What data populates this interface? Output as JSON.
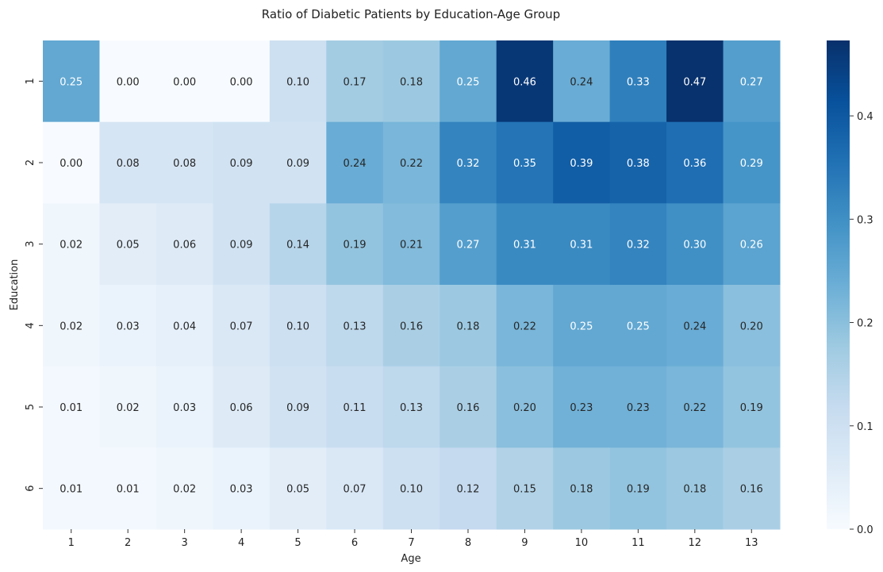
{
  "chart_data": {
    "type": "heatmap",
    "title": "Ratio of Diabetic Patients by Education-Age Group",
    "xlabel": "Age",
    "ylabel": "Education",
    "x_categories": [
      "1",
      "2",
      "3",
      "4",
      "5",
      "6",
      "7",
      "8",
      "9",
      "10",
      "11",
      "12",
      "13"
    ],
    "y_categories": [
      "1",
      "2",
      "3",
      "4",
      "5",
      "6"
    ],
    "values": [
      [
        0.25,
        0.0,
        0.0,
        0.0,
        0.1,
        0.17,
        0.18,
        0.25,
        0.46,
        0.24,
        0.33,
        0.47,
        0.27
      ],
      [
        0.0,
        0.08,
        0.08,
        0.09,
        0.09,
        0.24,
        0.22,
        0.32,
        0.35,
        0.39,
        0.38,
        0.36,
        0.29
      ],
      [
        0.02,
        0.05,
        0.06,
        0.09,
        0.14,
        0.19,
        0.21,
        0.27,
        0.31,
        0.31,
        0.32,
        0.3,
        0.26
      ],
      [
        0.02,
        0.03,
        0.04,
        0.07,
        0.1,
        0.13,
        0.16,
        0.18,
        0.22,
        0.25,
        0.25,
        0.24,
        0.2
      ],
      [
        0.01,
        0.02,
        0.03,
        0.06,
        0.09,
        0.11,
        0.13,
        0.16,
        0.2,
        0.23,
        0.23,
        0.22,
        0.19
      ],
      [
        0.01,
        0.01,
        0.02,
        0.03,
        0.05,
        0.07,
        0.1,
        0.12,
        0.15,
        0.18,
        0.19,
        0.18,
        0.16
      ]
    ],
    "colormap": "Blues",
    "vmin": 0.0,
    "vmax": 0.473,
    "colorbar_ticks": [
      "0.0",
      "0.1",
      "0.2",
      "0.3",
      "0.4"
    ],
    "colorbar_tick_values": [
      0.0,
      0.1,
      0.2,
      0.3,
      0.4
    ],
    "annotation_format": "2 decimals",
    "grid": false
  }
}
